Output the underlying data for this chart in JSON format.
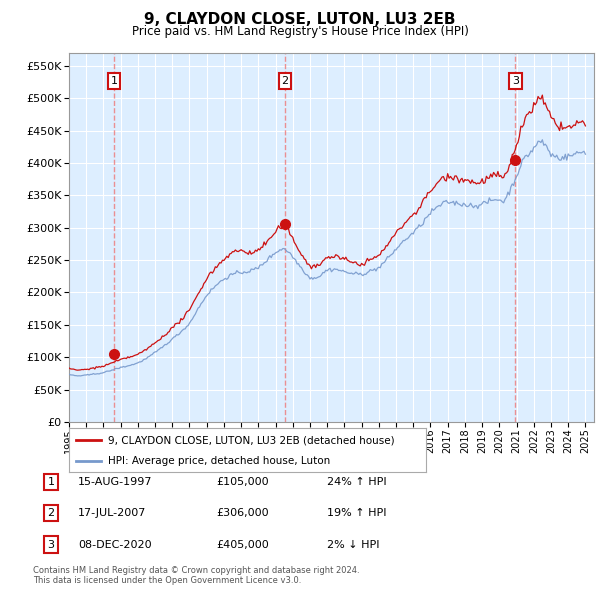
{
  "title": "9, CLAYDON CLOSE, LUTON, LU3 2EB",
  "subtitle": "Price paid vs. HM Land Registry's House Price Index (HPI)",
  "background_color": "#ffffff",
  "plot_bg_color": "#ddeeff",
  "grid_color": "#ffffff",
  "hpi_line_color": "#7799cc",
  "price_line_color": "#cc1111",
  "sale_marker_color": "#cc1111",
  "dashed_line_color": "#ee7777",
  "ylim": [
    0,
    570000
  ],
  "yticks": [
    0,
    50000,
    100000,
    150000,
    200000,
    250000,
    300000,
    350000,
    400000,
    450000,
    500000,
    550000
  ],
  "xlim_start": 1995.0,
  "xlim_end": 2025.5,
  "xticks": [
    1995,
    1996,
    1997,
    1998,
    1999,
    2000,
    2001,
    2002,
    2003,
    2004,
    2005,
    2006,
    2007,
    2008,
    2009,
    2010,
    2011,
    2012,
    2013,
    2014,
    2015,
    2016,
    2017,
    2018,
    2019,
    2020,
    2021,
    2022,
    2023,
    2024,
    2025
  ],
  "sale_events": [
    {
      "label": "1",
      "year": 1997.62,
      "price": 105000,
      "date": "15-AUG-1997",
      "pct": "24%",
      "dir": "↑"
    },
    {
      "label": "2",
      "year": 2007.54,
      "price": 306000,
      "date": "17-JUL-2007",
      "pct": "19%",
      "dir": "↑"
    },
    {
      "label": "3",
      "year": 2020.93,
      "price": 405000,
      "date": "08-DEC-2020",
      "pct": "2%",
      "dir": "↓"
    }
  ],
  "legend_line1": "9, CLAYDON CLOSE, LUTON, LU3 2EB (detached house)",
  "legend_line2": "HPI: Average price, detached house, Luton",
  "footer_line1": "Contains HM Land Registry data © Crown copyright and database right 2024.",
  "footer_line2": "This data is licensed under the Open Government Licence v3.0."
}
